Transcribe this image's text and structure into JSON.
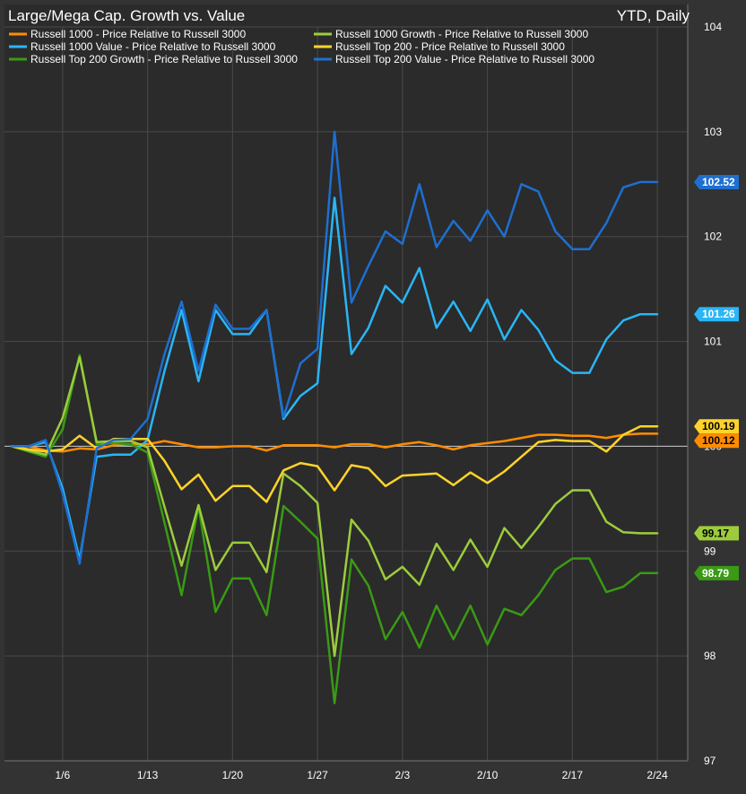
{
  "chart_data": {
    "type": "line",
    "title": "Large/Mega Cap. Growth vs. Value",
    "period_label": "YTD, Daily",
    "x_tick_labels": [
      "1/6",
      "1/13",
      "1/20",
      "1/27",
      "2/3",
      "2/10",
      "2/17",
      "2/24"
    ],
    "x_tick_index": [
      3,
      8,
      13,
      18,
      23,
      28,
      33,
      38
    ],
    "ylim": [
      97,
      104
    ],
    "yticks": [
      97,
      98,
      99,
      100,
      101,
      102,
      103,
      104
    ],
    "baseline": 100,
    "grid": true,
    "legend_position": "top-left",
    "series": [
      {
        "name": "Russell 1000 - Price Relative to Russell 3000",
        "color": "#ff8c00",
        "last_label": "100.12",
        "values": [
          100,
          100,
          99.96,
          99.95,
          99.98,
          99.97,
          100.01,
          100.02,
          100.02,
          100.05,
          100.02,
          99.99,
          99.99,
          100,
          100,
          99.96,
          100.01,
          100.01,
          100.01,
          99.99,
          100.02,
          100.02,
          99.99,
          100.02,
          100.04,
          100.01,
          99.97,
          100.01,
          100.03,
          100.05,
          100.08,
          100.11,
          100.11,
          100.1,
          100.1,
          100.08,
          100.11,
          100.12,
          100.12
        ]
      },
      {
        "name": "Russell 1000 Value - Price Relative to Russell 3000",
        "color": "#29b6f6",
        "last_label": "101.26",
        "values": [
          100,
          100,
          100.04,
          99.6,
          98.92,
          99.9,
          99.92,
          99.92,
          100.06,
          100.72,
          101.3,
          100.62,
          101.3,
          101.07,
          101.07,
          101.3,
          100.26,
          100.48,
          100.6,
          102.37,
          100.88,
          101.13,
          101.53,
          101.37,
          101.7,
          101.13,
          101.38,
          101.1,
          101.4,
          101.02,
          101.3,
          101.11,
          100.82,
          100.7,
          100.7,
          101.02,
          101.2,
          101.26,
          101.26
        ]
      },
      {
        "name": "Russell Top 200 Growth - Price Relative to Russell 3000",
        "color": "#3a9a14",
        "last_label": "98.79",
        "values": [
          100,
          99.95,
          99.9,
          100.16,
          100.87,
          100.02,
          100.03,
          100.02,
          99.94,
          99.27,
          98.58,
          99.43,
          98.42,
          98.74,
          98.74,
          98.39,
          99.43,
          99.28,
          99.12,
          97.55,
          98.92,
          98.67,
          98.16,
          98.42,
          98.08,
          98.48,
          98.16,
          98.48,
          98.11,
          98.45,
          98.39,
          98.58,
          98.82,
          98.93,
          98.93,
          98.61,
          98.66,
          98.79,
          98.79
        ]
      },
      {
        "name": "Russell 1000 Growth - Price Relative to Russell 3000",
        "color": "#9ccc3c",
        "last_label": "99.17",
        "values": [
          100,
          99.96,
          99.92,
          100.27,
          100.85,
          100.04,
          100.05,
          100.05,
          99.99,
          99.42,
          98.86,
          99.44,
          98.82,
          99.08,
          99.08,
          98.8,
          99.74,
          99.62,
          99.46,
          98,
          99.3,
          99.1,
          98.73,
          98.85,
          98.68,
          99.07,
          98.82,
          99.11,
          98.85,
          99.22,
          99.03,
          99.23,
          99.45,
          99.58,
          99.58,
          99.28,
          99.18,
          99.17,
          99.17
        ]
      },
      {
        "name": "Russell Top 200 - Price Relative to Russell 3000",
        "color": "#ffd32a",
        "last_label": "100.19",
        "values": [
          100,
          99.97,
          99.95,
          99.97,
          100.1,
          99.98,
          100.07,
          100.07,
          100.07,
          99.86,
          99.59,
          99.73,
          99.48,
          99.62,
          99.62,
          99.47,
          99.77,
          99.84,
          99.81,
          99.58,
          99.82,
          99.79,
          99.62,
          99.72,
          99.73,
          99.74,
          99.63,
          99.75,
          99.65,
          99.76,
          99.9,
          100.04,
          100.06,
          100.05,
          100.05,
          99.95,
          100.11,
          100.19,
          100.19
        ]
      },
      {
        "name": "Russell Top 200 Value - Price Relative to Russell 3000",
        "color": "#1e6fd0",
        "last_label": "102.52",
        "values": [
          100,
          100,
          100.06,
          99.55,
          98.88,
          99.98,
          100.06,
          100.07,
          100.26,
          100.88,
          101.38,
          100.72,
          101.35,
          101.12,
          101.12,
          101.3,
          100.28,
          100.79,
          100.93,
          103,
          101.37,
          101.72,
          102.05,
          101.93,
          102.5,
          101.9,
          102.15,
          101.96,
          102.25,
          102,
          102.5,
          102.43,
          102.05,
          101.88,
          101.88,
          102.13,
          102.47,
          102.52,
          102.52
        ]
      }
    ]
  }
}
